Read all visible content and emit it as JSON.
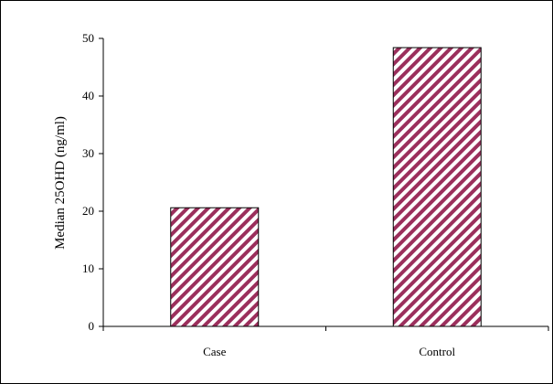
{
  "chart_data": {
    "type": "bar",
    "title": "",
    "xlabel": "",
    "ylabel": "Median 25OHD (ng/ml)",
    "categories": [
      "Case",
      "Control"
    ],
    "values": [
      20.6,
      48.4
    ],
    "ylim": [
      0,
      50
    ],
    "yticks": [
      0,
      10,
      20,
      30,
      40,
      50
    ],
    "grid": false,
    "legend": "none",
    "bar_pattern": "diagonal-stripes",
    "bar_color": "#9b2f5c",
    "bar_stroke": "#000000"
  }
}
